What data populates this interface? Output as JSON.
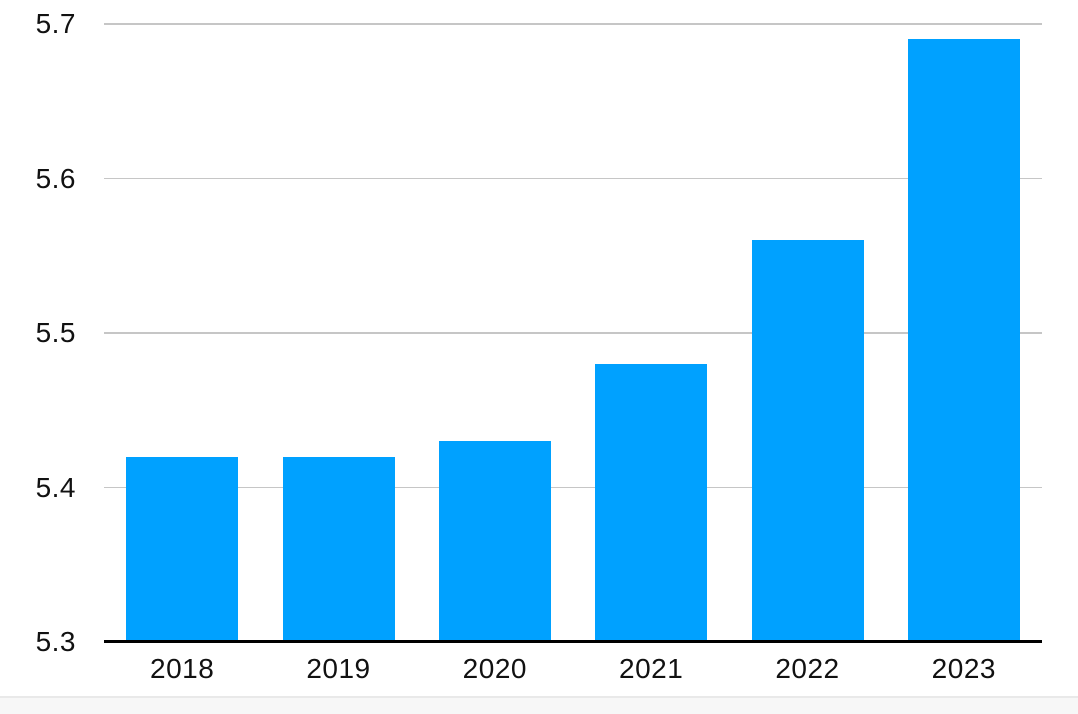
{
  "chart_data": {
    "type": "bar",
    "categories": [
      "2018",
      "2019",
      "2020",
      "2021",
      "2022",
      "2023"
    ],
    "values": [
      5.42,
      5.42,
      5.43,
      5.48,
      5.56,
      5.69
    ],
    "title": "",
    "xlabel": "",
    "ylabel": "",
    "ylim": [
      5.3,
      5.7
    ],
    "yticks": [
      "5.3",
      "5.4",
      "5.5",
      "5.6",
      "5.7"
    ],
    "grid": true,
    "legend": false,
    "colors": {
      "bar": "#00a1ff",
      "gridline": "#c6c6c6",
      "axis_line": "#000000",
      "tick_label": "#111111",
      "footer_strip_bg": "#f7f7f7",
      "footer_strip_border": "#e9e9e9",
      "background": "#ffffff"
    }
  }
}
